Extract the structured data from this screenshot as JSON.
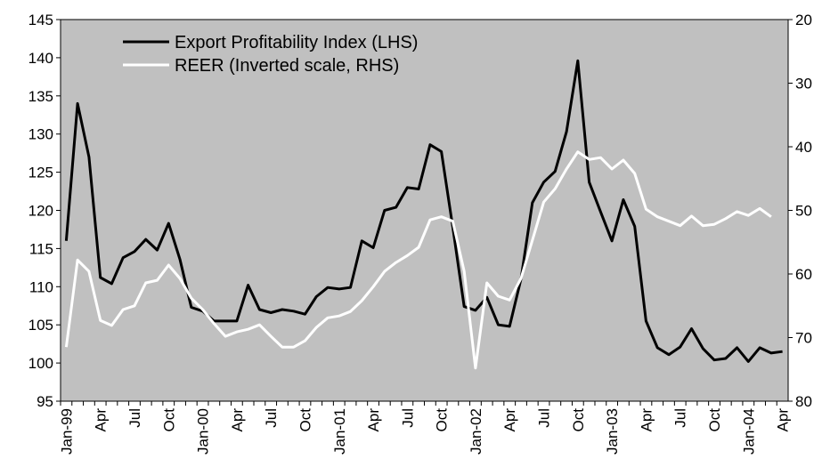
{
  "chart_data": {
    "type": "line",
    "categories": [
      "Jan-99",
      null,
      null,
      "Apr",
      null,
      null,
      "Jul",
      null,
      null,
      "Oct",
      null,
      null,
      "Jan-00",
      null,
      null,
      "Apr",
      null,
      null,
      "Jul",
      null,
      null,
      "Oct",
      null,
      null,
      "Jan-01",
      null,
      null,
      "Apr",
      null,
      null,
      "Jul",
      null,
      null,
      "Oct",
      null,
      null,
      "Jan-02",
      null,
      null,
      "Apr",
      null,
      null,
      "Jul",
      null,
      null,
      "Oct",
      null,
      null,
      "Jan-03",
      null,
      null,
      "Apr",
      null,
      null,
      "Jul",
      null,
      null,
      "Oct",
      null,
      null,
      "Jan-04",
      null,
      null,
      "Apr"
    ],
    "series": [
      {
        "name": "Export Profitability Index (LHS)",
        "color": "#000000",
        "axis": "y",
        "values": [
          116,
          134,
          127,
          111.2,
          110.4,
          113.8,
          114.6,
          116.2,
          114.8,
          118.3,
          113.6,
          107.3,
          106.8,
          105.5,
          105.5,
          105.5,
          110.2,
          107,
          106.6,
          107,
          106.8,
          106.4,
          108.7,
          109.9,
          109.7,
          109.9,
          116,
          115.1,
          120,
          120.4,
          123,
          122.8,
          128.6,
          127.7,
          117.8,
          107.4,
          106.9,
          108.6,
          105,
          104.8,
          111,
          121,
          123.7,
          125.1,
          130.3,
          139.6,
          123.7,
          119.8,
          116,
          121.4,
          117.9,
          105.5,
          102,
          101.1,
          102.1,
          104.5,
          101.9,
          100.4,
          100.6,
          102,
          100.2,
          102,
          101.3,
          101.5
        ]
      },
      {
        "name": "REER (Inverted scale, RHS)",
        "color": "#ffffff",
        "axis": "y2",
        "values": [
          71.5,
          57.8,
          59.6,
          67.3,
          68.1,
          65.6,
          65,
          61.4,
          61,
          58.6,
          60.7,
          63.8,
          65.6,
          67.8,
          69.8,
          69.1,
          68.7,
          68,
          69.8,
          71.5,
          71.5,
          70.5,
          68.4,
          66.9,
          66.6,
          65.9,
          64.2,
          62,
          59.6,
          58.2,
          57.1,
          55.8,
          51.5,
          51,
          51.7,
          59.6,
          74.8,
          61.4,
          63.5,
          64.1,
          60.7,
          54.7,
          48.7,
          46.6,
          43.5,
          40.8,
          42,
          41.7,
          43.5,
          42.1,
          44.2,
          49.8,
          51,
          51.7,
          52.4,
          50.9,
          52.4,
          52.2,
          51.3,
          50.2,
          50.8,
          49.7,
          51,
          null
        ]
      }
    ],
    "ylim": [
      95,
      145
    ],
    "yticks": [
      95,
      100,
      105,
      110,
      115,
      120,
      125,
      130,
      135,
      140,
      145
    ],
    "y2lim": [
      80,
      20
    ],
    "y2ticks": [
      20,
      30,
      40,
      50,
      60,
      70,
      80
    ],
    "plot_background": "#c0c0c0",
    "grid": false,
    "legend": "upper left"
  }
}
